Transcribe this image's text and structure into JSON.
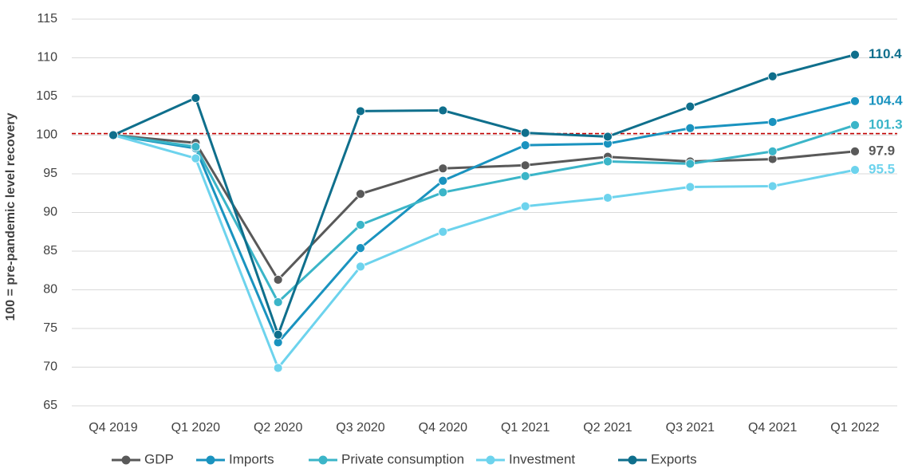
{
  "chart_data": {
    "type": "line",
    "categories": [
      "Q4 2019",
      "Q1 2020",
      "Q2 2020",
      "Q3 2020",
      "Q4 2020",
      "Q1 2021",
      "Q2 2021",
      "Q3 2021",
      "Q4 2021",
      "Q1 2022"
    ],
    "ylabel": "100 = pre-pandemic level recovery",
    "ylim": [
      65,
      115
    ],
    "yticks": [
      65,
      70,
      75,
      80,
      85,
      90,
      95,
      100,
      105,
      110,
      115
    ],
    "grid": true,
    "reference_line": {
      "value": 100.2,
      "color": "#c00000",
      "style": "dashed"
    },
    "legend_position": "bottom",
    "series": [
      {
        "name": "GDP",
        "color": "#595959",
        "values": [
          100,
          99.0,
          81.3,
          92.4,
          95.7,
          96.1,
          97.2,
          96.6,
          96.9,
          97.9
        ],
        "end_label": "97.9"
      },
      {
        "name": "Imports",
        "color": "#1a93bf",
        "values": [
          100,
          98.3,
          73.2,
          85.4,
          94.1,
          98.7,
          98.9,
          100.9,
          101.7,
          104.4
        ],
        "end_label": "104.4"
      },
      {
        "name": "Private consumption",
        "color": "#3bb5c8",
        "values": [
          100,
          98.5,
          78.4,
          88.4,
          92.6,
          94.7,
          96.6,
          96.3,
          97.9,
          101.3
        ],
        "end_label": "101.3"
      },
      {
        "name": "Investment",
        "color": "#6dd3ed",
        "values": [
          100,
          97.0,
          69.9,
          83.0,
          87.5,
          90.8,
          91.9,
          93.3,
          93.4,
          95.5
        ],
        "end_label": "95.5"
      },
      {
        "name": "Exports",
        "color": "#0f6f8c",
        "values": [
          100,
          104.8,
          74.2,
          103.1,
          103.2,
          100.3,
          99.8,
          103.7,
          107.6,
          110.4
        ],
        "end_label": "110.4"
      }
    ]
  }
}
